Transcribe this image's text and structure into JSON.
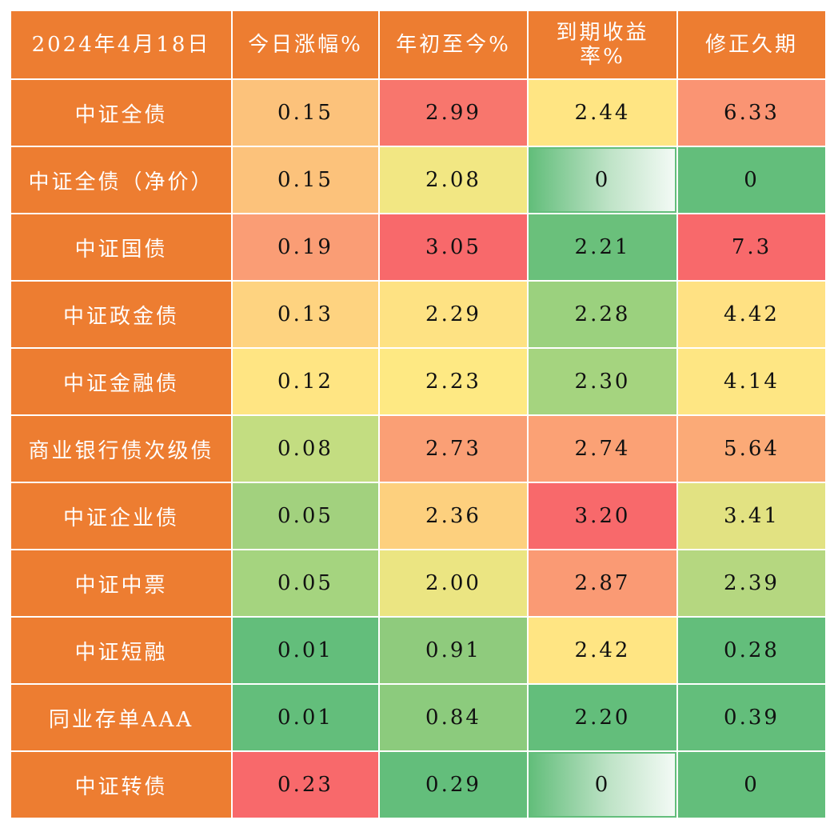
{
  "table": {
    "header": {
      "corner": "2024年4月18日",
      "columns": [
        "今日涨幅%",
        "年初至今%",
        "到期收益率%",
        "修正久期"
      ]
    },
    "rows": [
      {
        "label": "中证全债",
        "cells": [
          "0.15",
          "2.99",
          "2.44",
          "6.33"
        ]
      },
      {
        "label": "中证全债（净价）",
        "cells": [
          "0.15",
          "2.08",
          "0",
          "0"
        ]
      },
      {
        "label": "中证国债",
        "cells": [
          "0.19",
          "3.05",
          "2.21",
          "7.3"
        ]
      },
      {
        "label": "中证政金债",
        "cells": [
          "0.13",
          "2.29",
          "2.28",
          "4.42"
        ]
      },
      {
        "label": "中证金融债",
        "cells": [
          "0.12",
          "2.23",
          "2.30",
          "4.14"
        ]
      },
      {
        "label": "商业银行债次级债",
        "cells": [
          "0.08",
          "2.73",
          "2.74",
          "5.64"
        ]
      },
      {
        "label": "中证企业债",
        "cells": [
          "0.05",
          "2.36",
          "3.20",
          "3.41"
        ]
      },
      {
        "label": "中证中票",
        "cells": [
          "0.05",
          "2.00",
          "2.87",
          "2.39"
        ]
      },
      {
        "label": "中证短融",
        "cells": [
          "0.01",
          "0.91",
          "2.42",
          "0.28"
        ]
      },
      {
        "label": "同业存单AAA",
        "cells": [
          "0.01",
          "0.84",
          "2.20",
          "0.39"
        ]
      },
      {
        "label": "中证转债",
        "cells": [
          "0.23",
          "0.29",
          "0",
          "0"
        ]
      }
    ],
    "cell_colors": [
      [
        "#fcc27b",
        "#f8766d",
        "#ffe583",
        "#fa9473"
      ],
      [
        "#fcc27b",
        "#f2e783",
        "gradient",
        "#63be7b"
      ],
      [
        "#fa9d75",
        "#f8696b",
        "#6ac07b",
        "#f8696b"
      ],
      [
        "#fed380",
        "#fee283",
        "#9bd17e",
        "#ffe183"
      ],
      [
        "#ffe583",
        "#fee983",
        "#a5d47f",
        "#fee683"
      ],
      [
        "#c3dd81",
        "#fa9f75",
        "#fba175",
        "#fbaa77"
      ],
      [
        "#a2d17e",
        "#fdd07e",
        "#f8696b",
        "#e2e282"
      ],
      [
        "#a5d47f",
        "#ebe582",
        "#fa9a74",
        "#b5d780"
      ],
      [
        "#63be7b",
        "#8fcb7d",
        "#ffe583",
        "#63be7b"
      ],
      [
        "#63be7b",
        "#8ccb7d",
        "#63be7b",
        "#63be7b"
      ],
      [
        "#f8696b",
        "#63be7b",
        "gradient",
        "#63be7b"
      ]
    ],
    "header_color": "#ed7d31",
    "label_color": "#ed7d31",
    "border_color": "#ffffff"
  },
  "chart_data": {
    "type": "table",
    "title": "2024年4月18日",
    "columns": [
      "今日涨幅%",
      "年初至今%",
      "到期收益率%",
      "修正久期"
    ],
    "rows": [
      "中证全债",
      "中证全债（净价）",
      "中证国债",
      "中证政金债",
      "中证金融债",
      "商业银行债次级债",
      "中证企业债",
      "中证中票",
      "中证短融",
      "同业存单AAA",
      "中证转债"
    ],
    "values": [
      [
        0.15,
        2.99,
        2.44,
        6.33
      ],
      [
        0.15,
        2.08,
        0,
        0
      ],
      [
        0.19,
        3.05,
        2.21,
        7.3
      ],
      [
        0.13,
        2.29,
        2.28,
        4.42
      ],
      [
        0.12,
        2.23,
        2.3,
        4.14
      ],
      [
        0.08,
        2.73,
        2.74,
        5.64
      ],
      [
        0.05,
        2.36,
        3.2,
        3.41
      ],
      [
        0.05,
        2.0,
        2.87,
        2.39
      ],
      [
        0.01,
        0.91,
        2.42,
        0.28
      ],
      [
        0.01,
        0.84,
        2.2,
        0.39
      ],
      [
        0.23,
        0.29,
        0,
        0
      ]
    ]
  }
}
